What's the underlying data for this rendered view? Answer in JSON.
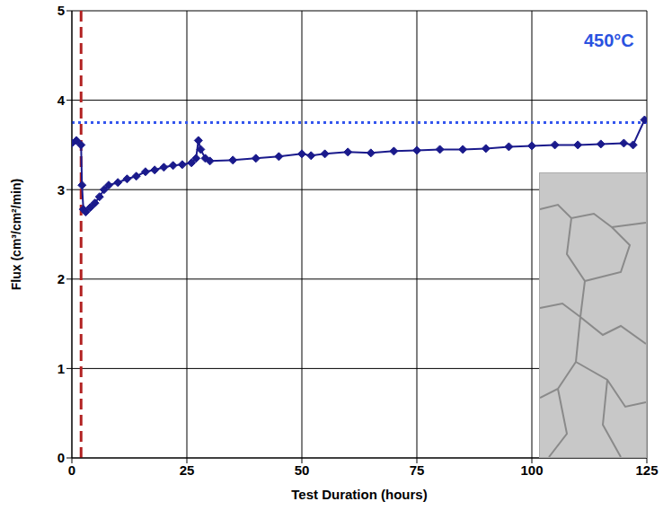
{
  "chart_data": {
    "type": "line",
    "annotation": "450°C",
    "xlabel": "Test Duration (hours)",
    "ylabel": "Flux (cm³/cm²/min)",
    "xlim": [
      0,
      125
    ],
    "ylim": [
      0,
      5
    ],
    "xticks": [
      0,
      25,
      50,
      75,
      100,
      125
    ],
    "yticks": [
      0,
      1,
      2,
      3,
      4,
      5
    ],
    "grid": true,
    "series": [
      {
        "name": "Flux",
        "color": "#1a1a8c",
        "marker": "diamond",
        "x": [
          0,
          1,
          2,
          2.2,
          2.5,
          3,
          4,
          5,
          6,
          7,
          8,
          10,
          12,
          14,
          16,
          18,
          20,
          22,
          24,
          26,
          27,
          27.5,
          28,
          29,
          30,
          35,
          40,
          45,
          50,
          52,
          55,
          60,
          65,
          70,
          75,
          80,
          85,
          90,
          95,
          100,
          105,
          110,
          115,
          120,
          122,
          124.5
        ],
        "values": [
          3.52,
          3.55,
          3.5,
          3.05,
          2.78,
          2.75,
          2.8,
          2.85,
          2.92,
          3.0,
          3.05,
          3.08,
          3.12,
          3.15,
          3.2,
          3.22,
          3.25,
          3.27,
          3.28,
          3.3,
          3.35,
          3.55,
          3.45,
          3.35,
          3.32,
          3.33,
          3.35,
          3.37,
          3.4,
          3.38,
          3.4,
          3.42,
          3.41,
          3.43,
          3.44,
          3.45,
          3.45,
          3.46,
          3.48,
          3.49,
          3.5,
          3.5,
          3.51,
          3.52,
          3.5,
          3.78
        ]
      }
    ],
    "reference_lines": [
      {
        "axis": "y",
        "value": 3.75,
        "color": "#3355ee",
        "line_style": "dotted"
      },
      {
        "axis": "x",
        "value": 2,
        "color": "#b22222",
        "line_style": "dashed"
      }
    ]
  }
}
